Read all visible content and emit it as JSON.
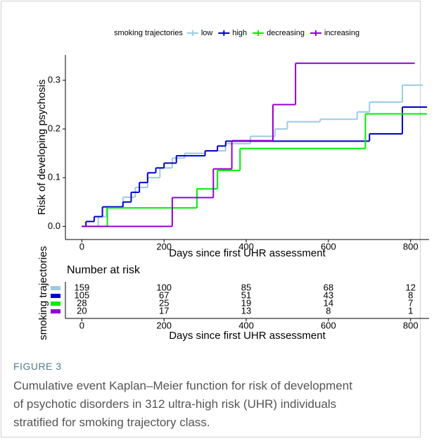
{
  "chart_data": [
    {
      "type": "step",
      "legend_title": "smoking trajectories",
      "legend": "top",
      "xlabel": "Days since first UHR assessment",
      "ylabel": "Risk of developing psychosis",
      "xlim": [
        -40,
        845
      ],
      "xticks": [
        0,
        200,
        400,
        600,
        800
      ],
      "ylim": [
        -0.027,
        0.352
      ],
      "yticks": [
        {
          "value": 0,
          "label": "0.0"
        },
        0.1,
        0.2,
        0.3
      ],
      "series": [
        {
          "name": "low",
          "color": "#9ecae1",
          "x": [
            0,
            40,
            60,
            100,
            130,
            160,
            190,
            220,
            250,
            300,
            350,
            410,
            470,
            500,
            580,
            670,
            700,
            780,
            830
          ],
          "values": [
            0,
            0.02,
            0.04,
            0.06,
            0.08,
            0.1,
            0.12,
            0.14,
            0.15,
            0.155,
            0.17,
            0.185,
            0.2,
            0.215,
            0.22,
            0.235,
            0.255,
            0.29,
            0.29
          ]
        },
        {
          "name": "high",
          "color": "#0000cd",
          "x": [
            0,
            10,
            30,
            50,
            100,
            120,
            140,
            160,
            180,
            200,
            230,
            300,
            330,
            350,
            700,
            780,
            840
          ],
          "values": [
            0,
            0.01,
            0.02,
            0.04,
            0.05,
            0.07,
            0.09,
            0.11,
            0.12,
            0.13,
            0.145,
            0.155,
            0.165,
            0.175,
            0.19,
            0.245,
            0.245
          ]
        },
        {
          "name": "decreasing",
          "color": "#00ee00",
          "x": [
            0,
            62,
            280,
            330,
            385,
            690,
            840
          ],
          "values": [
            0,
            0.038,
            0.077,
            0.115,
            0.16,
            0.231,
            0.231
          ]
        },
        {
          "name": "increasing",
          "color": "#9400d3",
          "x": [
            0,
            220,
            320,
            365,
            465,
            520,
            810
          ],
          "values": [
            0,
            0.059,
            0.118,
            0.176,
            0.25,
            0.335,
            0.335
          ]
        }
      ]
    },
    {
      "type": "risk-table",
      "title": "Number at risk",
      "ylabel": "smoking trajectories",
      "xlabel": "Days since first UHR assessment",
      "xlim": [
        -40,
        845
      ],
      "xticks": [
        0,
        200,
        400,
        600,
        800
      ],
      "x": [
        0,
        200,
        400,
        600,
        800
      ],
      "series": [
        {
          "color": "#9ecae1",
          "values": [
            159,
            100,
            85,
            68,
            12
          ]
        },
        {
          "color": "#0000cd",
          "values": [
            105,
            67,
            51,
            43,
            8
          ]
        },
        {
          "color": "#00ee00",
          "values": [
            28,
            25,
            19,
            14,
            7
          ]
        },
        {
          "color": "#9400d3",
          "values": [
            20,
            17,
            13,
            8,
            1
          ]
        }
      ]
    }
  ],
  "caption": {
    "label": "FIGURE 3",
    "text": "Cumulative event Kaplan–Meier function for risk of development of psychotic disorders in 312 ultra-high risk (UHR) individuals stratified for smoking trajectory class."
  }
}
